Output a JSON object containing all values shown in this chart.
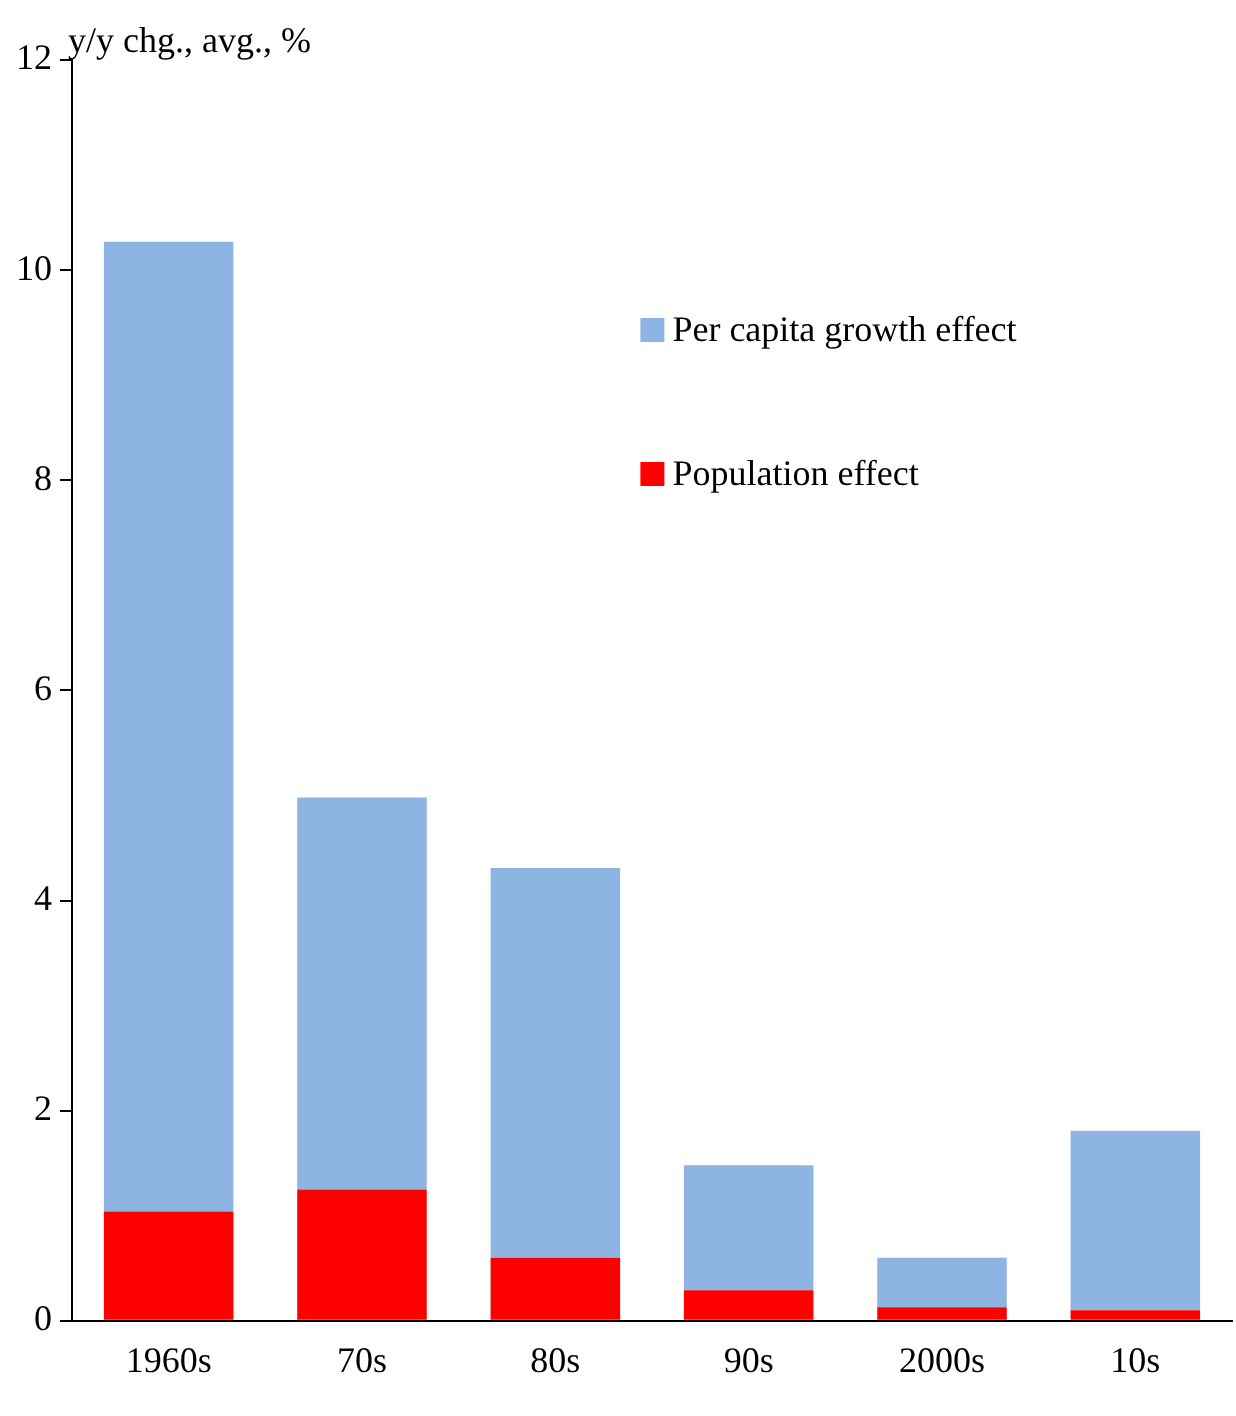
{
  "chart_data": {
    "type": "bar",
    "ylabel": "y/y chg., avg., %",
    "categories": [
      "1960s",
      "70s",
      "80s",
      "90s",
      "2000s",
      "10s"
    ],
    "stacked": true,
    "series": [
      {
        "name": "Population effect",
        "color": "#ff0000",
        "values": [
          1.04,
          1.25,
          0.6,
          0.29,
          0.13,
          0.1
        ]
      },
      {
        "name": "Per capita growth effect",
        "color": "#8eb4e3",
        "values": [
          9.23,
          3.73,
          3.71,
          1.19,
          0.47,
          1.71
        ]
      }
    ],
    "ylim": [
      0,
      12
    ],
    "yticks": [
      0,
      2,
      4,
      6,
      8,
      10,
      12
    ],
    "grid": false,
    "legend": "top right"
  }
}
